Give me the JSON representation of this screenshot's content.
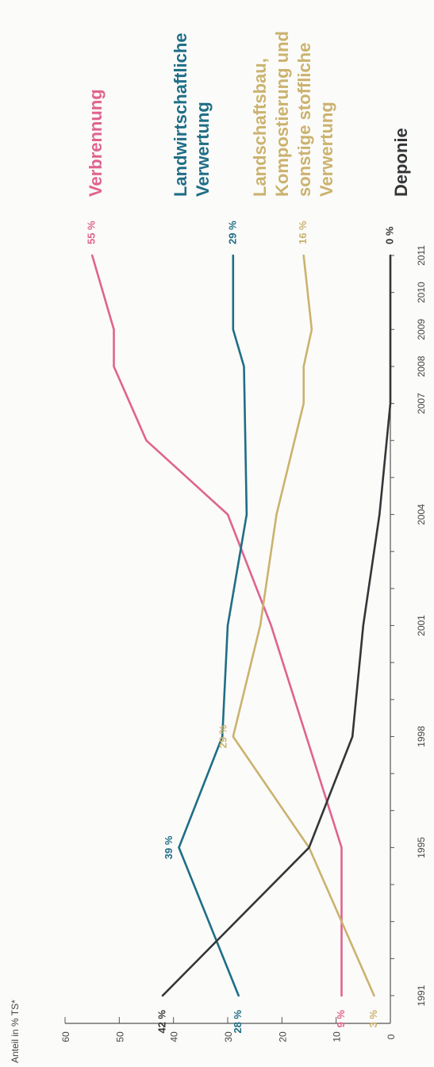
{
  "chart_data": {
    "type": "line",
    "orientation": "rotated 90° counter-clockwise",
    "y_axis_label": "Anteil in % TS*",
    "y_ticks": [
      0,
      10,
      20,
      30,
      40,
      50,
      60
    ],
    "x_ticks": [
      "1991",
      "1995",
      "1998",
      "2001",
      "2004",
      "2007",
      "2008",
      "2009",
      "2010",
      "2011"
    ],
    "ylim": [
      0,
      60
    ],
    "xlim": [
      1991,
      2011
    ],
    "grid": false,
    "series": [
      {
        "name": "Verbrennung",
        "color": "#e0638f",
        "x": [
          1991,
          1995,
          2001,
          2004,
          2006,
          2008,
          2009,
          2011
        ],
        "y": [
          9,
          9,
          22,
          30,
          45,
          51,
          51,
          55
        ],
        "labels": [
          {
            "x": 1991,
            "y": 9,
            "text": "9 %"
          },
          {
            "x": 2011,
            "y": 55,
            "text": "55 %"
          }
        ]
      },
      {
        "name": "Landwirtschaftliche Verwertung",
        "color": "#1f6e86",
        "x": [
          1991,
          1995,
          1998,
          2001,
          2004,
          2008,
          2009,
          2011
        ],
        "y": [
          28,
          39,
          31,
          30,
          26.5,
          27,
          29,
          29
        ],
        "labels": [
          {
            "x": 1991,
            "y": 28,
            "text": "28 %"
          },
          {
            "x": 1995,
            "y": 39,
            "text": "39 %"
          },
          {
            "x": 2011,
            "y": 29,
            "text": "29 %"
          }
        ]
      },
      {
        "name": "Landschaftsbau, Kompostierung und sonstige stoffliche Verwertung",
        "color": "#cbb26e",
        "x": [
          1991,
          1995,
          1998,
          2001,
          2004,
          2007,
          2008,
          2009,
          2011
        ],
        "y": [
          3,
          15,
          29,
          24,
          21,
          16,
          16,
          14.5,
          16
        ],
        "labels": [
          {
            "x": 1991,
            "y": 3,
            "text": "3 %"
          },
          {
            "x": 1998,
            "y": 29,
            "text": "29 %"
          },
          {
            "x": 2011,
            "y": 16,
            "text": "16 %"
          }
        ]
      },
      {
        "name": "Deponie",
        "color": "#333638",
        "x": [
          1991,
          1995,
          1998,
          2001,
          2004,
          2007,
          2011
        ],
        "y": [
          42,
          15,
          7,
          5,
          2,
          0,
          0
        ],
        "labels": [
          {
            "x": 1991,
            "y": 42,
            "text": "42 %"
          },
          {
            "x": 2011,
            "y": 0,
            "text": "0 %"
          }
        ]
      }
    ],
    "legend": [
      {
        "lines": [
          "Verbrennung"
        ],
        "color": "#e0638f"
      },
      {
        "lines": [
          "Landwirtschaftliche",
          "Verwertung"
        ],
        "color": "#1f6e86"
      },
      {
        "lines": [
          "Landschaftsbau,",
          "Kompostierung und",
          "sonstige stoffliche",
          "Verwertung"
        ],
        "color": "#cbb26e"
      },
      {
        "lines": [
          "Deponie"
        ],
        "color": "#333638"
      }
    ]
  }
}
